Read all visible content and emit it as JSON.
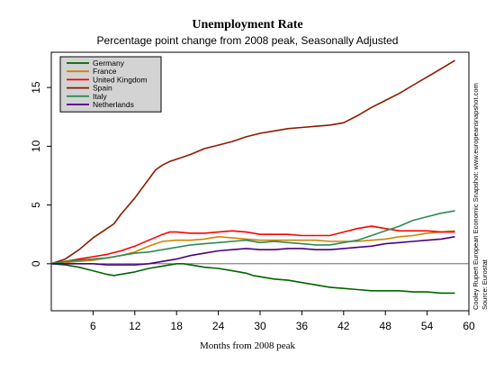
{
  "chart_data": {
    "type": "line",
    "title": "Unemployment Rate",
    "subtitle": "Percentage point change from 2008 peak, Seasonally Adjusted",
    "xlabel": "Months from 2008 peak",
    "ylabel": "",
    "xlim": [
      0,
      60
    ],
    "ylim": [
      -4,
      18
    ],
    "xticks": [
      6,
      12,
      18,
      24,
      30,
      36,
      42,
      48,
      54,
      60
    ],
    "yticks": [
      0,
      5,
      10,
      15
    ],
    "zero_line": 0,
    "grid": false,
    "legend_position": "top-left",
    "source_note": [
      "Cooley Rupert European Economic Snapshot: www.europeansnapshot.com",
      "Source: Eurostat"
    ],
    "series": [
      {
        "name": "Germany",
        "color": "#006400",
        "x": [
          0,
          2,
          4,
          6,
          8,
          9,
          10,
          12,
          14,
          16,
          18,
          19,
          20,
          22,
          24,
          26,
          28,
          29,
          30,
          32,
          34,
          36,
          38,
          40,
          42,
          44,
          46,
          48,
          50,
          52,
          54,
          56,
          58
        ],
        "y": [
          0,
          -0.1,
          -0.3,
          -0.6,
          -0.9,
          -1.0,
          -0.9,
          -0.7,
          -0.4,
          -0.2,
          0.0,
          0.0,
          -0.1,
          -0.3,
          -0.4,
          -0.6,
          -0.8,
          -1.0,
          -1.1,
          -1.3,
          -1.4,
          -1.6,
          -1.8,
          -2.0,
          -2.1,
          -2.2,
          -2.3,
          -2.3,
          -2.3,
          -2.4,
          -2.4,
          -2.5,
          -2.5
        ]
      },
      {
        "name": "France",
        "color": "#CC8400",
        "x": [
          0,
          2,
          4,
          6,
          8,
          10,
          12,
          14,
          16,
          18,
          20,
          22,
          24,
          26,
          28,
          30,
          32,
          34,
          36,
          38,
          40,
          42,
          44,
          46,
          48,
          50,
          52,
          54,
          56,
          58
        ],
        "y": [
          0,
          0.1,
          0.2,
          0.3,
          0.5,
          0.7,
          1.0,
          1.5,
          1.9,
          2.0,
          2.0,
          2.1,
          2.3,
          2.2,
          2.1,
          2.0,
          2.0,
          2.0,
          2.0,
          2.0,
          1.9,
          1.9,
          1.9,
          2.0,
          2.1,
          2.3,
          2.4,
          2.6,
          2.7,
          2.8
        ]
      },
      {
        "name": "United Kingdom",
        "color": "#FF0000",
        "x": [
          0,
          2,
          4,
          6,
          8,
          10,
          12,
          14,
          16,
          17,
          18,
          20,
          22,
          24,
          26,
          28,
          30,
          32,
          34,
          36,
          38,
          40,
          42,
          44,
          46,
          48,
          50,
          52,
          54,
          56,
          58
        ],
        "y": [
          0,
          0.2,
          0.4,
          0.6,
          0.8,
          1.1,
          1.5,
          2.0,
          2.5,
          2.7,
          2.7,
          2.6,
          2.6,
          2.7,
          2.8,
          2.7,
          2.5,
          2.5,
          2.5,
          2.4,
          2.4,
          2.4,
          2.7,
          3.0,
          3.2,
          3.0,
          2.8,
          2.8,
          2.8,
          2.7,
          2.7
        ]
      },
      {
        "name": "Spain",
        "color": "#8B1A00",
        "x": [
          0,
          2,
          4,
          6,
          8,
          9,
          10,
          12,
          14,
          15,
          16,
          17,
          18,
          20,
          22,
          24,
          26,
          28,
          30,
          32,
          34,
          36,
          38,
          40,
          42,
          44,
          46,
          48,
          50,
          52,
          54,
          56,
          58
        ],
        "y": [
          0,
          0.4,
          1.2,
          2.2,
          3.0,
          3.4,
          4.2,
          5.6,
          7.2,
          8.0,
          8.4,
          8.7,
          8.9,
          9.3,
          9.8,
          10.1,
          10.4,
          10.8,
          11.1,
          11.3,
          11.5,
          11.6,
          11.7,
          11.8,
          12.0,
          12.6,
          13.3,
          13.9,
          14.5,
          15.2,
          15.9,
          16.6,
          17.3
        ]
      },
      {
        "name": "Italy",
        "color": "#2E8B57",
        "x": [
          0,
          2,
          4,
          6,
          8,
          10,
          12,
          14,
          16,
          18,
          20,
          22,
          24,
          26,
          28,
          30,
          32,
          34,
          36,
          38,
          40,
          42,
          44,
          46,
          48,
          50,
          52,
          54,
          56,
          58
        ],
        "y": [
          0,
          0.2,
          0.3,
          0.4,
          0.5,
          0.7,
          0.9,
          1.0,
          1.2,
          1.4,
          1.6,
          1.7,
          1.8,
          1.9,
          2.0,
          1.8,
          1.9,
          1.8,
          1.7,
          1.6,
          1.6,
          1.8,
          2.0,
          2.4,
          2.8,
          3.2,
          3.7,
          4.0,
          4.3,
          4.5
        ]
      },
      {
        "name": "Netherlands",
        "color": "#4B0082",
        "x": [
          0,
          2,
          4,
          6,
          8,
          10,
          12,
          14,
          16,
          18,
          20,
          22,
          24,
          26,
          28,
          30,
          32,
          34,
          36,
          38,
          40,
          42,
          44,
          46,
          48,
          50,
          52,
          54,
          56,
          58
        ],
        "y": [
          0,
          0.0,
          0.0,
          0.0,
          -0.1,
          -0.1,
          -0.1,
          0.0,
          0.2,
          0.4,
          0.7,
          0.9,
          1.1,
          1.2,
          1.3,
          1.2,
          1.2,
          1.3,
          1.3,
          1.2,
          1.2,
          1.3,
          1.4,
          1.5,
          1.7,
          1.8,
          1.9,
          2.0,
          2.1,
          2.3
        ]
      }
    ]
  }
}
